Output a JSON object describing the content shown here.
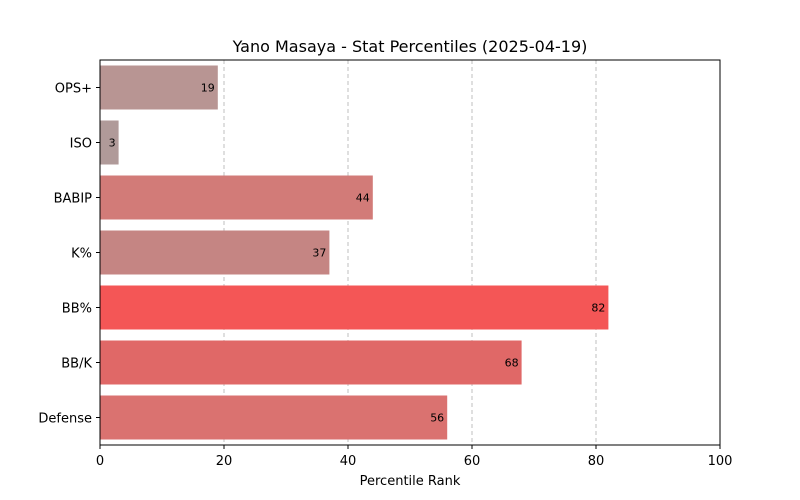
{
  "chart_data": {
    "type": "bar",
    "orientation": "horizontal",
    "title": "Yano Masaya - Stat Percentiles (2025-04-19)",
    "xlabel": "Percentile Rank",
    "ylabel": "",
    "xlim": [
      0,
      100
    ],
    "xticks": [
      0,
      20,
      40,
      60,
      80,
      100
    ],
    "grid": "x-dashed",
    "categories": [
      "OPS+",
      "ISO",
      "BABIP",
      "K%",
      "BB%",
      "BB/K",
      "Defense"
    ],
    "values": [
      19,
      3,
      44,
      37,
      82,
      68,
      56
    ],
    "colors": [
      "#b89593",
      "#b09a99",
      "#d27b78",
      "#c58583",
      "#f45656",
      "#e06867",
      "#da7270"
    ]
  }
}
